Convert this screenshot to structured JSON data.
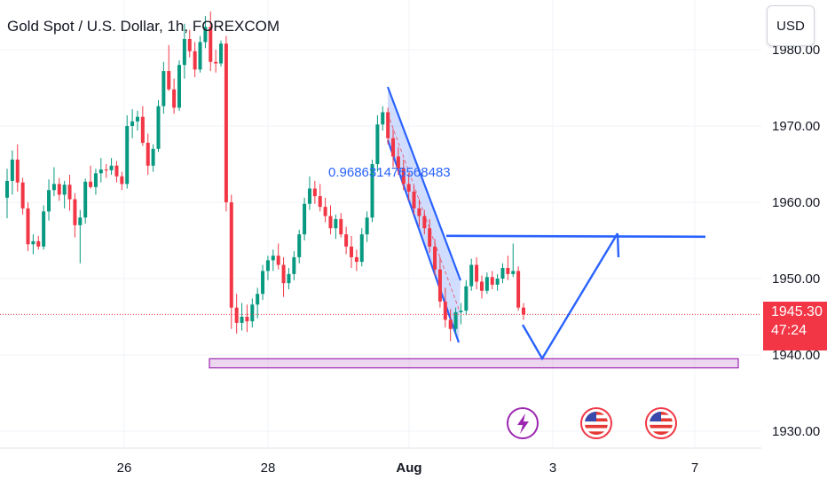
{
  "header": {
    "title": "Gold Spot / U.S. Dollar, 1h, FOREXCOM",
    "currency": "USD"
  },
  "price_tag": {
    "price": "1945.30",
    "countdown": "47:24"
  },
  "chart_data": {
    "type": "candlestick",
    "symbol": "Gold Spot / U.S. Dollar",
    "interval": "1h",
    "exchange": "FOREXCOM",
    "y_ticks": [
      "1930.00",
      "1940.00",
      "1950.00",
      "1960.00",
      "1970.00",
      "1980.00"
    ],
    "y_tick_values": [
      1930,
      1940,
      1950,
      1960,
      1970,
      1980
    ],
    "ylim": [
      1928,
      1986
    ],
    "x_ticks": [
      "26",
      "28",
      "Aug",
      "3",
      "7"
    ],
    "current_price": 1945.3,
    "annotation_text": "0.968631475568483",
    "support_zone": [
      1938.3,
      1939.5
    ],
    "resistance_level": 1955.6,
    "colors": {
      "up": "#089981",
      "down": "#f23645",
      "drawing": "#2962ff",
      "zone": "#9c27b0"
    },
    "event_icons": [
      "lightning-icon",
      "us-flag-icon",
      "us-flag-icon"
    ],
    "candles_ohlc": [
      [
        1960.6,
        1964.4,
        1957.9,
        1962.8
      ],
      [
        1962.8,
        1966.8,
        1961.0,
        1965.6
      ],
      [
        1965.6,
        1967.6,
        1961.4,
        1962.6
      ],
      [
        1962.6,
        1963.2,
        1958.4,
        1959.2
      ],
      [
        1959.2,
        1960.0,
        1953.6,
        1954.5
      ],
      [
        1954.5,
        1955.8,
        1953.2,
        1954.9
      ],
      [
        1954.9,
        1955.6,
        1953.8,
        1954.2
      ],
      [
        1954.2,
        1959.6,
        1953.8,
        1958.8
      ],
      [
        1958.8,
        1963.0,
        1957.6,
        1961.6
      ],
      [
        1961.6,
        1964.6,
        1960.8,
        1962.4
      ],
      [
        1962.4,
        1963.2,
        1960.2,
        1961.0
      ],
      [
        1961.0,
        1962.8,
        1959.2,
        1962.3
      ],
      [
        1962.3,
        1963.6,
        1958.9,
        1960.4
      ],
      [
        1960.4,
        1961.2,
        1955.4,
        1957.0
      ],
      [
        1957.0,
        1959.0,
        1952.0,
        1958.0
      ],
      [
        1958.0,
        1963.1,
        1957.2,
        1962.7
      ],
      [
        1962.7,
        1964.8,
        1961.8,
        1962.0
      ],
      [
        1962.0,
        1964.4,
        1961.0,
        1963.8
      ],
      [
        1963.8,
        1965.8,
        1962.6,
        1964.3
      ],
      [
        1964.3,
        1965.0,
        1963.2,
        1964.2
      ],
      [
        1964.2,
        1965.8,
        1963.6,
        1964.8
      ],
      [
        1964.8,
        1965.4,
        1962.6,
        1963.4
      ],
      [
        1963.4,
        1964.0,
        1961.6,
        1962.4
      ],
      [
        1962.4,
        1971.4,
        1961.8,
        1970.0
      ],
      [
        1970.0,
        1972.2,
        1968.4,
        1970.6
      ],
      [
        1970.6,
        1972.0,
        1969.4,
        1971.2
      ],
      [
        1971.2,
        1972.6,
        1967.4,
        1967.8
      ],
      [
        1967.8,
        1969.0,
        1963.6,
        1964.8
      ],
      [
        1964.8,
        1967.6,
        1964.0,
        1967.0
      ],
      [
        1967.0,
        1973.4,
        1966.6,
        1972.6
      ],
      [
        1972.6,
        1978.4,
        1971.6,
        1977.2
      ],
      [
        1977.2,
        1980.6,
        1974.6,
        1974.8
      ],
      [
        1974.8,
        1976.2,
        1971.6,
        1972.4
      ],
      [
        1972.4,
        1978.6,
        1972.0,
        1978.0
      ],
      [
        1978.0,
        1983.4,
        1976.2,
        1981.4
      ],
      [
        1981.4,
        1982.6,
        1979.0,
        1979.8
      ],
      [
        1979.8,
        1981.0,
        1976.4,
        1977.4
      ],
      [
        1977.4,
        1981.8,
        1977.0,
        1981.0
      ],
      [
        1981.0,
        1984.4,
        1980.2,
        1983.0
      ],
      [
        1983.0,
        1985.0,
        1977.2,
        1978.4
      ],
      [
        1978.4,
        1980.0,
        1977.0,
        1978.2
      ],
      [
        1978.2,
        1981.2,
        1977.8,
        1980.8
      ],
      [
        1980.8,
        1981.8,
        1958.8,
        1960.0
      ],
      [
        1960.0,
        1961.0,
        1943.4,
        1946.2
      ],
      [
        1946.2,
        1948.0,
        1942.8,
        1944.2
      ],
      [
        1944.2,
        1946.8,
        1943.2,
        1945.0
      ],
      [
        1945.0,
        1946.6,
        1943.0,
        1944.4
      ],
      [
        1944.4,
        1947.4,
        1943.6,
        1946.6
      ],
      [
        1946.6,
        1948.8,
        1944.8,
        1948.0
      ],
      [
        1948.0,
        1951.8,
        1947.2,
        1951.0
      ],
      [
        1951.0,
        1953.0,
        1949.8,
        1952.4
      ],
      [
        1952.4,
        1953.8,
        1951.0,
        1953.0
      ],
      [
        1953.0,
        1954.6,
        1951.2,
        1951.8
      ],
      [
        1951.8,
        1952.8,
        1947.6,
        1949.4
      ],
      [
        1949.4,
        1951.4,
        1948.6,
        1950.6
      ],
      [
        1950.6,
        1953.6,
        1949.8,
        1952.8
      ],
      [
        1952.8,
        1956.4,
        1952.0,
        1955.8
      ],
      [
        1955.8,
        1960.6,
        1955.0,
        1959.8
      ],
      [
        1959.8,
        1963.4,
        1959.0,
        1961.8
      ],
      [
        1961.8,
        1962.8,
        1959.8,
        1960.8
      ],
      [
        1960.8,
        1962.4,
        1958.8,
        1959.4
      ],
      [
        1959.4,
        1960.6,
        1957.4,
        1958.2
      ],
      [
        1958.2,
        1959.6,
        1955.8,
        1956.6
      ],
      [
        1956.6,
        1958.4,
        1955.2,
        1957.8
      ],
      [
        1957.8,
        1958.6,
        1955.4,
        1955.8
      ],
      [
        1955.8,
        1956.8,
        1953.2,
        1954.2
      ],
      [
        1954.2,
        1955.6,
        1951.4,
        1952.8
      ],
      [
        1952.8,
        1953.8,
        1951.0,
        1952.2
      ],
      [
        1952.2,
        1956.6,
        1951.6,
        1955.8
      ],
      [
        1955.8,
        1958.8,
        1954.8,
        1958.0
      ],
      [
        1958.0,
        1965.6,
        1957.4,
        1965.0
      ],
      [
        1965.0,
        1971.4,
        1964.0,
        1970.2
      ],
      [
        1970.2,
        1972.6,
        1969.4,
        1971.8
      ],
      [
        1971.8,
        1972.4,
        1967.6,
        1968.4
      ],
      [
        1968.4,
        1969.6,
        1964.6,
        1966.0
      ],
      [
        1966.0,
        1967.2,
        1963.6,
        1964.4
      ],
      [
        1964.4,
        1965.6,
        1961.6,
        1962.4
      ],
      [
        1962.4,
        1963.8,
        1960.2,
        1961.4
      ],
      [
        1961.4,
        1962.2,
        1958.4,
        1959.2
      ],
      [
        1959.2,
        1960.4,
        1956.8,
        1958.2
      ],
      [
        1958.2,
        1959.0,
        1955.8,
        1956.6
      ],
      [
        1956.6,
        1957.8,
        1953.4,
        1954.2
      ],
      [
        1954.2,
        1955.2,
        1950.4,
        1951.2
      ],
      [
        1951.2,
        1952.8,
        1946.2,
        1947.0
      ],
      [
        1947.0,
        1948.8,
        1943.6,
        1944.6
      ],
      [
        1944.6,
        1946.0,
        1941.8,
        1943.4
      ],
      [
        1943.4,
        1946.2,
        1942.8,
        1945.6
      ],
      [
        1945.6,
        1946.8,
        1944.0,
        1945.8
      ],
      [
        1945.8,
        1949.8,
        1945.2,
        1949.0
      ],
      [
        1949.0,
        1952.6,
        1948.4,
        1951.8
      ],
      [
        1951.8,
        1952.8,
        1948.6,
        1949.6
      ],
      [
        1949.6,
        1950.4,
        1947.4,
        1948.4
      ],
      [
        1948.4,
        1950.8,
        1948.0,
        1950.2
      ],
      [
        1950.2,
        1951.0,
        1948.6,
        1949.2
      ],
      [
        1949.2,
        1950.6,
        1948.4,
        1950.0
      ],
      [
        1950.0,
        1952.0,
        1949.4,
        1951.4
      ],
      [
        1951.4,
        1953.0,
        1949.8,
        1950.6
      ],
      [
        1950.6,
        1954.6,
        1950.2,
        1951.0
      ],
      [
        1951.0,
        1951.6,
        1945.8,
        1946.2
      ],
      [
        1946.2,
        1946.8,
        1944.6,
        1945.3
      ]
    ]
  }
}
